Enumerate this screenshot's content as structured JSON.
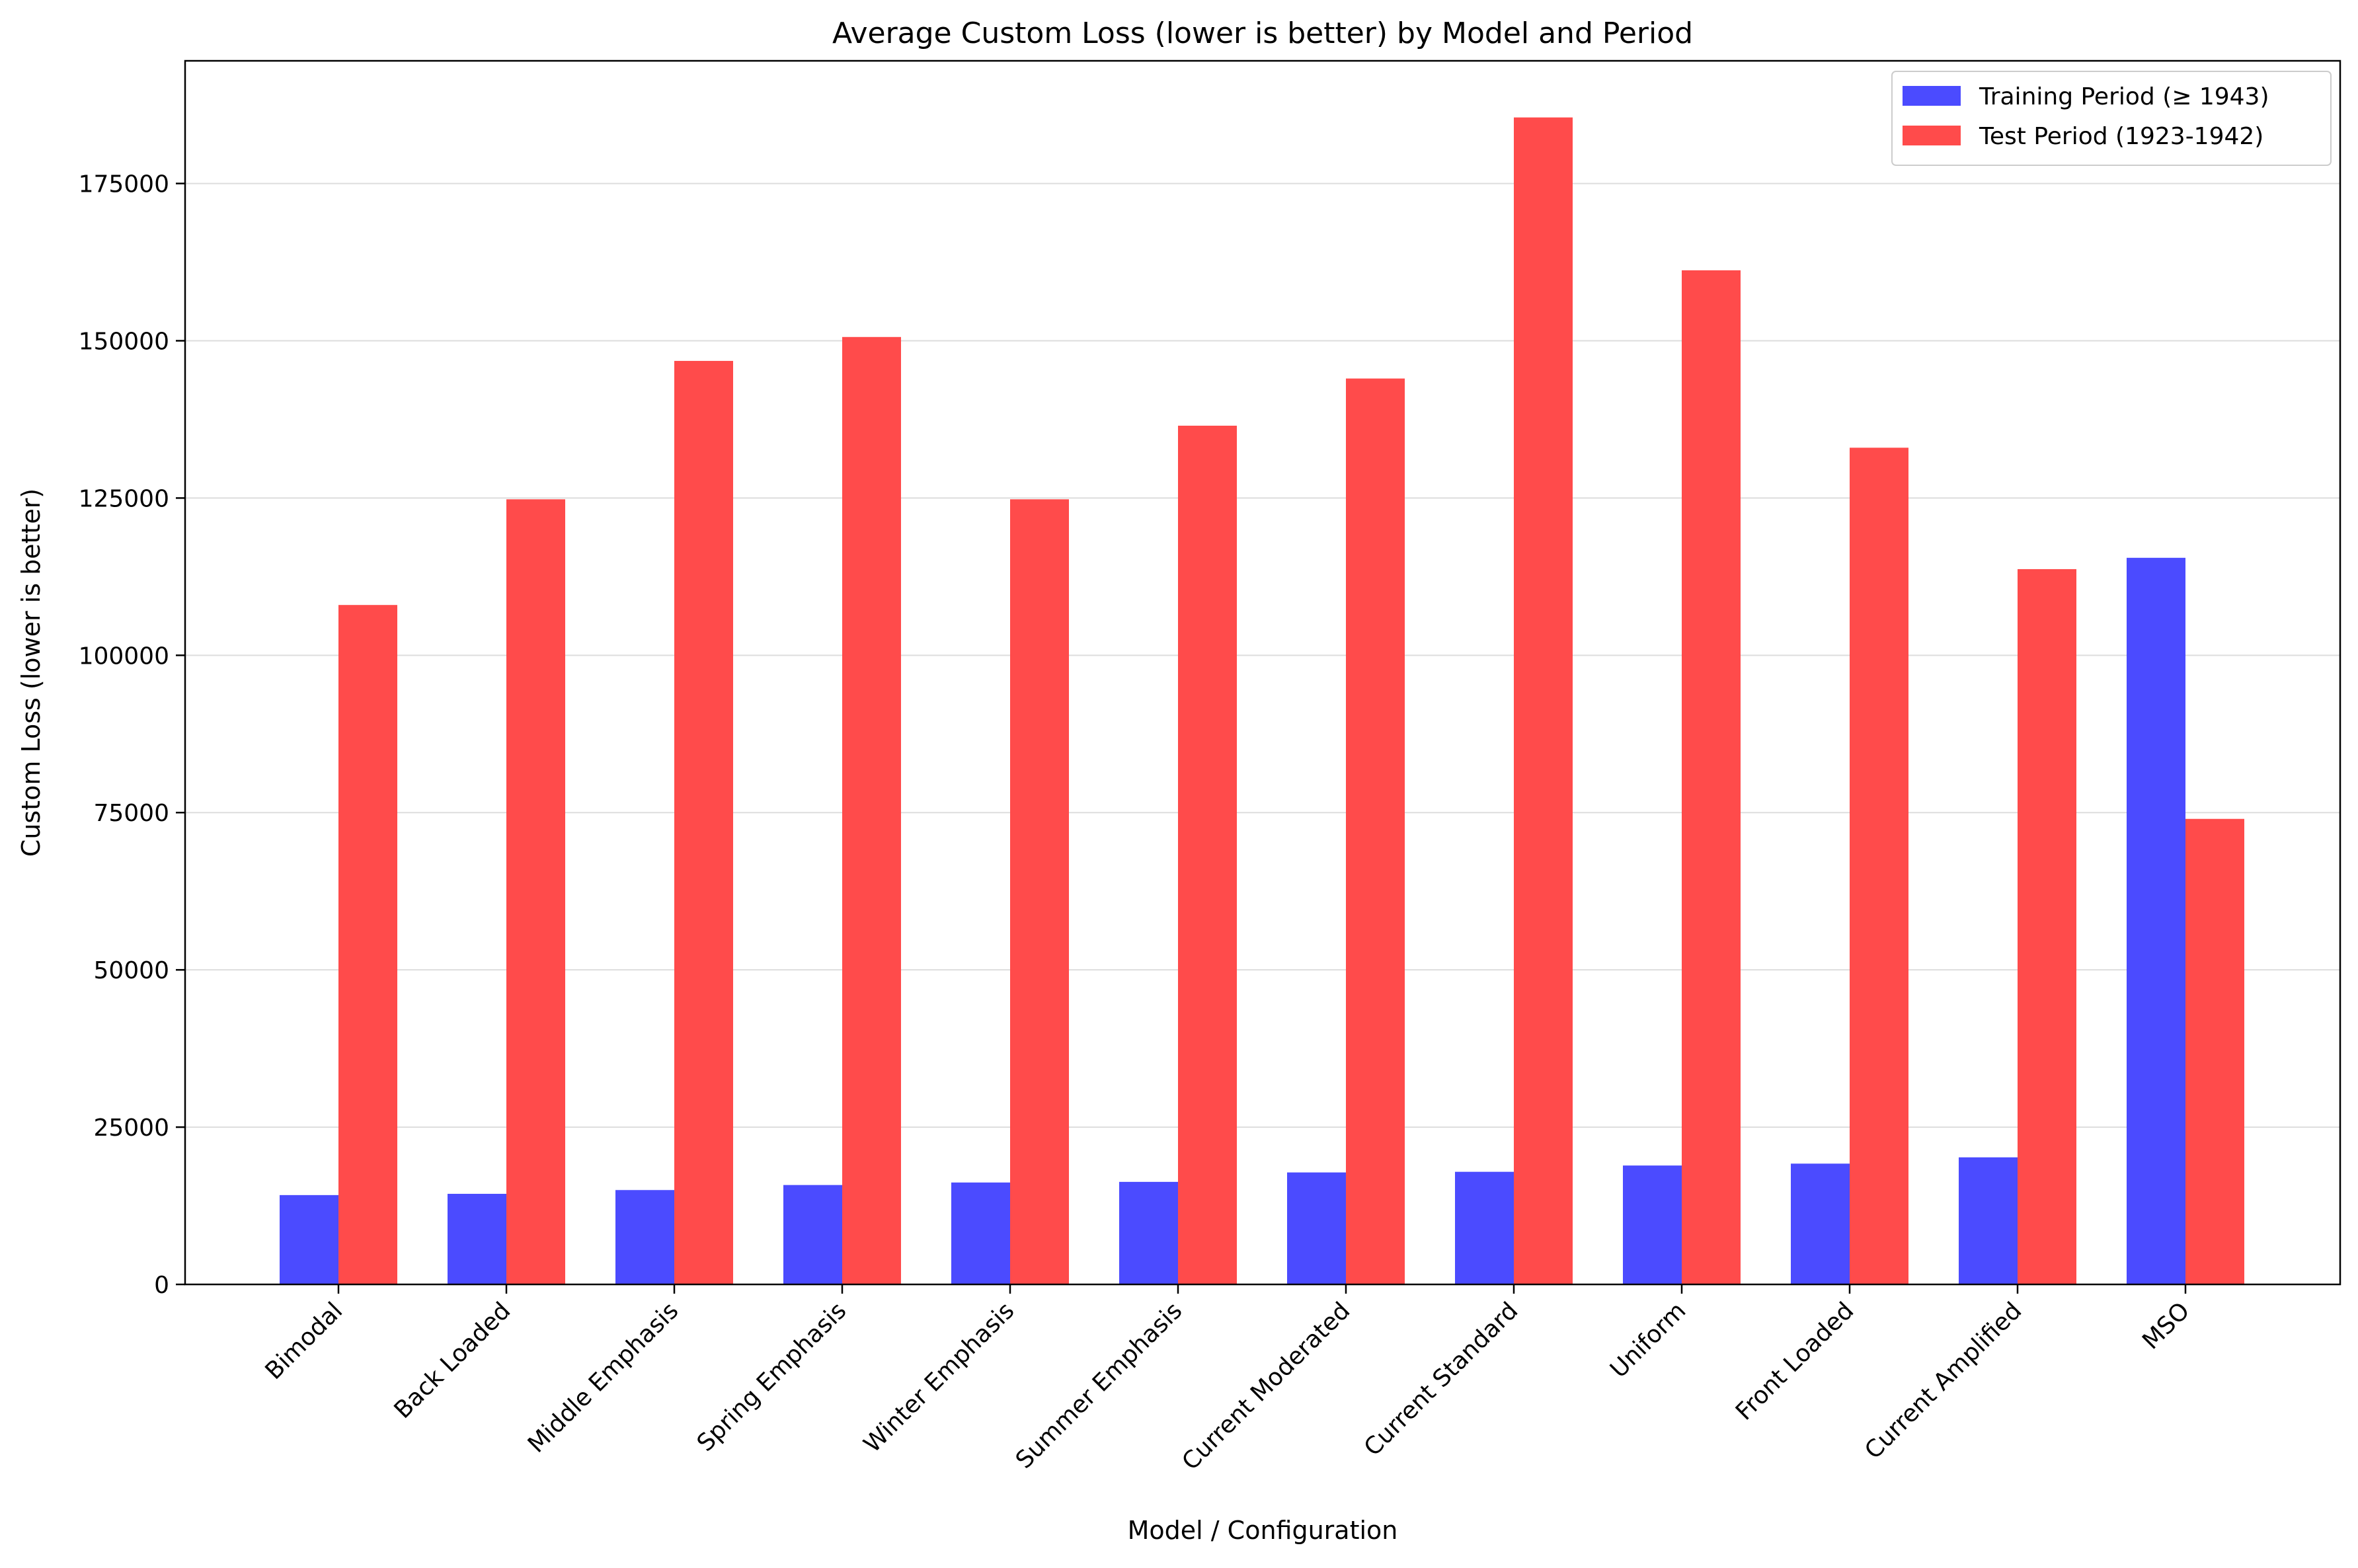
{
  "chart_data": {
    "type": "bar",
    "title": "Average Custom Loss (lower is better) by Model and Period",
    "xlabel": "Model / Configuration",
    "ylabel": "Custom Loss (lower is better)",
    "categories": [
      "Bimodal",
      "Back Loaded",
      "Middle Emphasis",
      "Spring Emphasis",
      "Winter Emphasis",
      "Summer Emphasis",
      "Current Moderated",
      "Current Standard",
      "Uniform",
      "Front Loaded",
      "Current Amplified",
      "MSO"
    ],
    "series": [
      {
        "name": "Training Period (≥ 1943)",
        "color": "#4b4bff",
        "values": [
          14200,
          14400,
          15000,
          15800,
          16200,
          16300,
          17800,
          17900,
          18900,
          19200,
          20200,
          115500
        ]
      },
      {
        "name": "Test Period (1923-1942)",
        "color": "#ff4b4b",
        "values": [
          108000,
          124800,
          146800,
          150600,
          124800,
          136500,
          144000,
          185500,
          161200,
          133000,
          113700,
          74000
        ]
      }
    ],
    "ylim": [
      0,
      194500
    ],
    "yticks": [
      "0",
      "25000",
      "50000",
      "75000",
      "100000",
      "125000",
      "150000",
      "175000"
    ],
    "grid": "y",
    "legend_position": "top-right"
  }
}
